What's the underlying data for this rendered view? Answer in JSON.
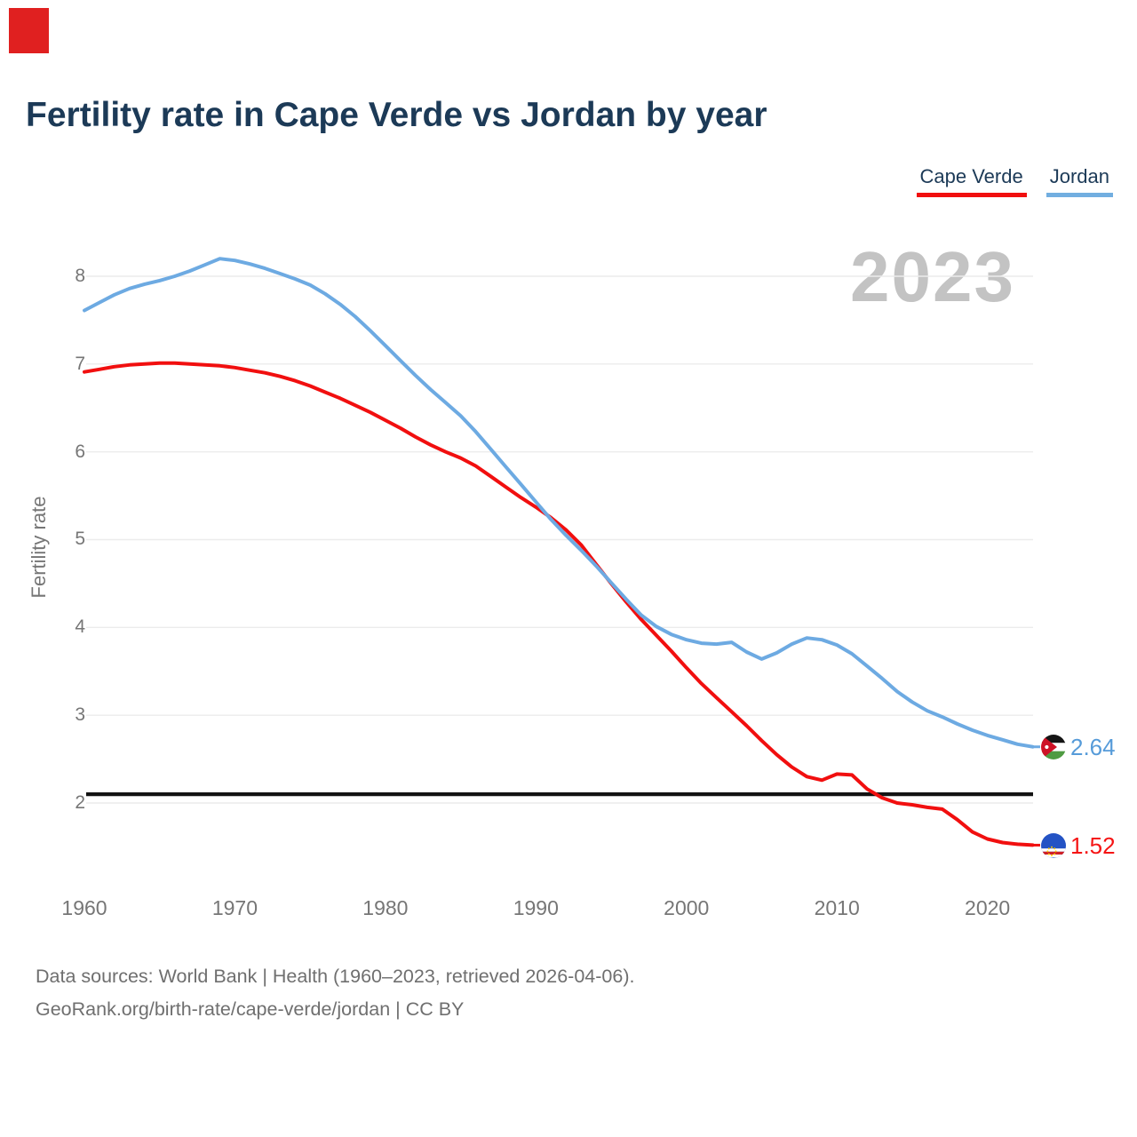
{
  "title": "Fertility rate in Cape Verde vs Jordan by year",
  "watermark": "2023",
  "legend": [
    {
      "label": "Cape Verde",
      "color": "#f10f0f"
    },
    {
      "label": "Jordan",
      "color": "#72aee0"
    }
  ],
  "chart_data": {
    "type": "line",
    "title": "Fertility rate in Cape Verde vs Jordan by year",
    "xlabel": "",
    "ylabel": "Fertility rate",
    "xlim": [
      1960,
      2023
    ],
    "ylim": [
      1.1,
      8.55
    ],
    "grid": true,
    "legend_position": "top-right",
    "xticks": [
      1960,
      1970,
      1980,
      1990,
      2000,
      2010,
      2020
    ],
    "yticks": [
      2,
      3,
      4,
      5,
      6,
      7,
      8
    ],
    "x": [
      1960,
      1961,
      1962,
      1963,
      1964,
      1965,
      1966,
      1967,
      1968,
      1969,
      1970,
      1971,
      1972,
      1973,
      1974,
      1975,
      1976,
      1977,
      1978,
      1979,
      1980,
      1981,
      1982,
      1983,
      1984,
      1985,
      1986,
      1987,
      1988,
      1989,
      1990,
      1991,
      1992,
      1993,
      1994,
      1995,
      1996,
      1997,
      1998,
      1999,
      2000,
      2001,
      2002,
      2003,
      2004,
      2005,
      2006,
      2007,
      2008,
      2009,
      2010,
      2011,
      2012,
      2013,
      2014,
      2015,
      2016,
      2017,
      2018,
      2019,
      2020,
      2021,
      2022,
      2023
    ],
    "series": [
      {
        "name": "Cape Verde",
        "color": "#f10f0f",
        "values": [
          6.91,
          6.94,
          6.97,
          6.99,
          7.0,
          7.01,
          7.01,
          7.0,
          6.99,
          6.98,
          6.96,
          6.93,
          6.9,
          6.86,
          6.81,
          6.75,
          6.68,
          6.61,
          6.53,
          6.45,
          6.36,
          6.27,
          6.17,
          6.08,
          6.0,
          5.93,
          5.84,
          5.72,
          5.6,
          5.48,
          5.37,
          5.25,
          5.11,
          4.94,
          4.72,
          4.5,
          4.29,
          4.09,
          3.91,
          3.73,
          3.54,
          3.36,
          3.2,
          3.04,
          2.88,
          2.71,
          2.55,
          2.41,
          2.3,
          2.26,
          2.33,
          2.32,
          2.16,
          2.06,
          2.0,
          1.98,
          1.95,
          1.93,
          1.81,
          1.67,
          1.59,
          1.55,
          1.53,
          1.52
        ]
      },
      {
        "name": "Jordan",
        "color": "#6daae2",
        "values": [
          7.61,
          7.7,
          7.79,
          7.86,
          7.91,
          7.95,
          8.0,
          8.06,
          8.13,
          8.2,
          8.18,
          8.14,
          8.09,
          8.03,
          7.97,
          7.9,
          7.8,
          7.68,
          7.54,
          7.38,
          7.21,
          7.04,
          6.87,
          6.71,
          6.56,
          6.41,
          6.23,
          6.03,
          5.83,
          5.63,
          5.43,
          5.23,
          5.05,
          4.88,
          4.7,
          4.51,
          4.32,
          4.14,
          4.01,
          3.92,
          3.86,
          3.82,
          3.81,
          3.83,
          3.72,
          3.64,
          3.71,
          3.81,
          3.88,
          3.86,
          3.8,
          3.7,
          3.56,
          3.42,
          3.27,
          3.15,
          3.05,
          2.98,
          2.9,
          2.83,
          2.77,
          2.72,
          2.67,
          2.64
        ]
      }
    ],
    "reference_line": {
      "value": 2.1,
      "color": "#131313"
    },
    "end_labels": [
      {
        "series": "Jordan",
        "value": "2.64",
        "flag": "jordan-flag",
        "color": "#569bd9"
      },
      {
        "series": "Cape Verde",
        "value": "1.52",
        "flag": "cape-verde-flag",
        "color": "#f51414"
      }
    ]
  },
  "footer": {
    "line1": "Data sources: World Bank | Health (1960–2023, retrieved 2026-04-06).",
    "line2": "GeoRank.org/birth-rate/cape-verde/jordan | CC BY"
  }
}
